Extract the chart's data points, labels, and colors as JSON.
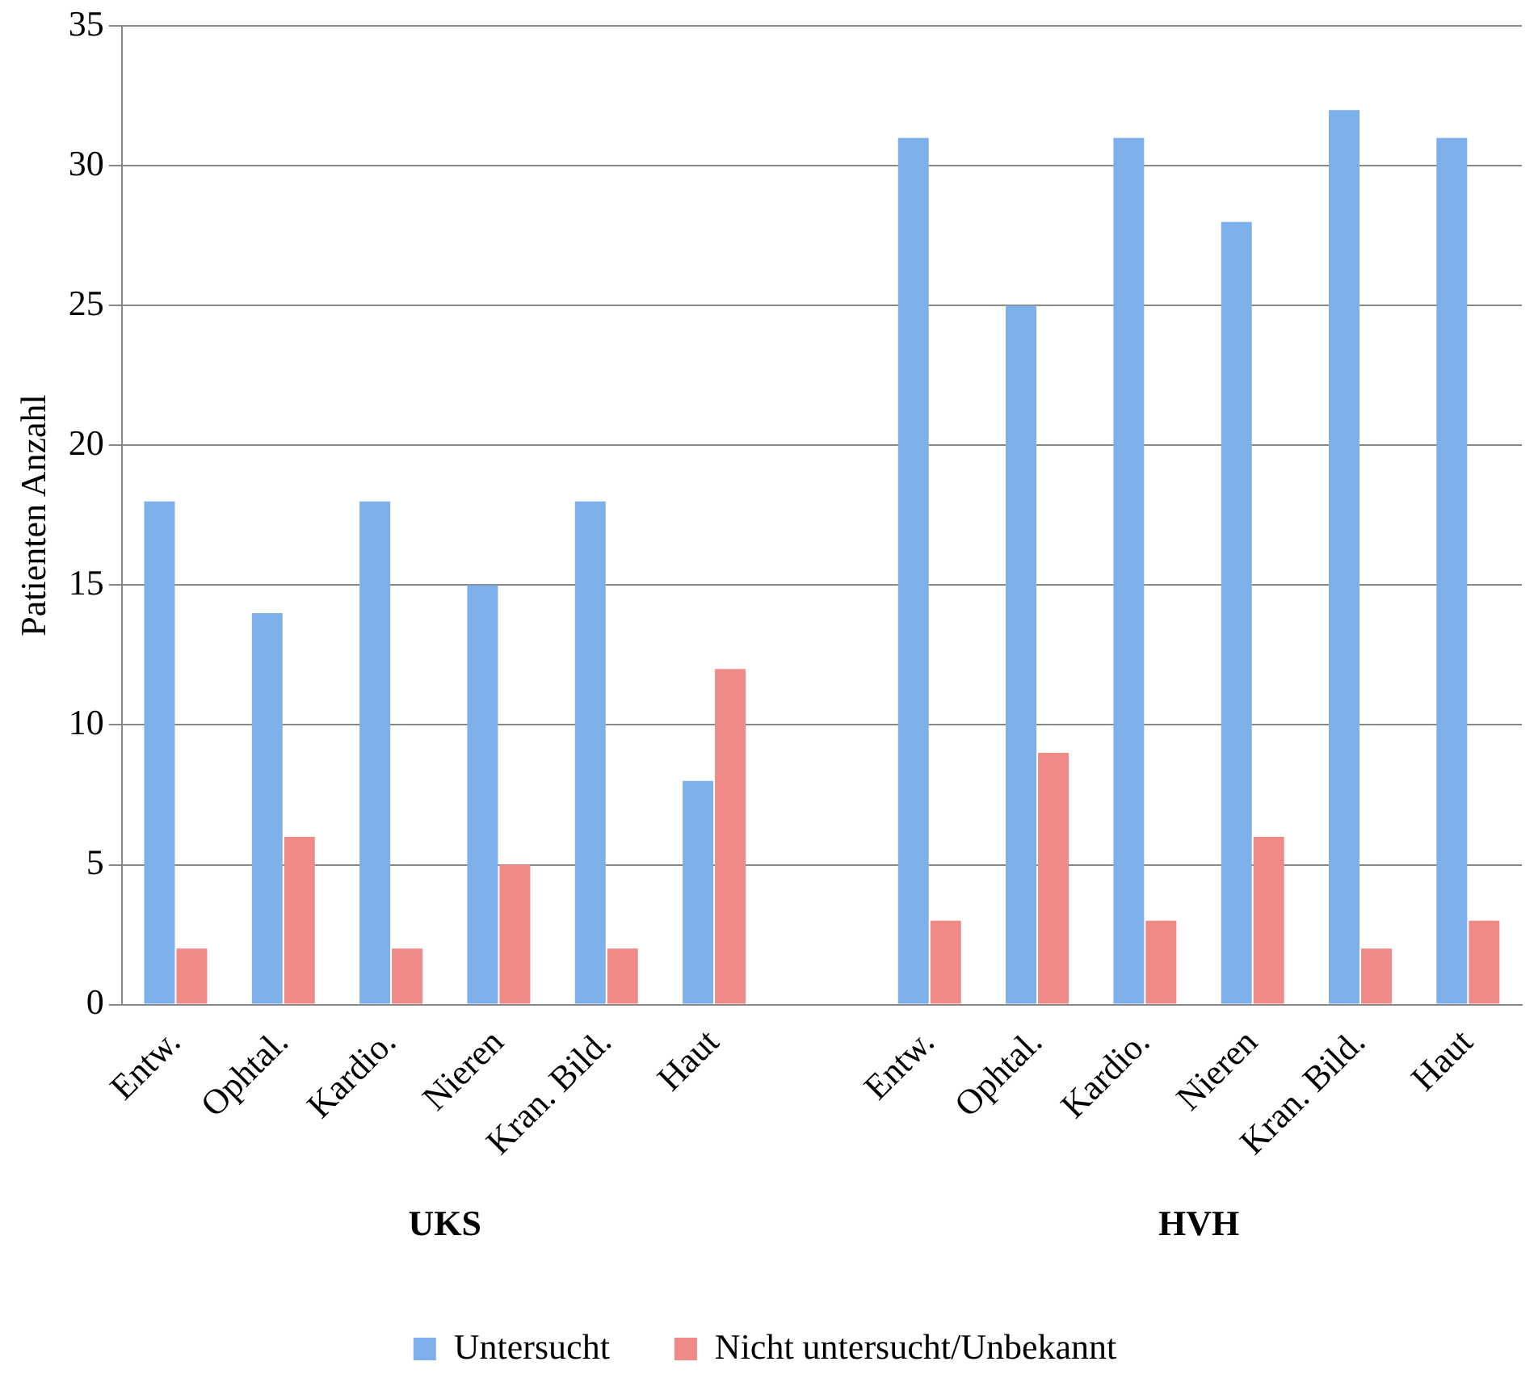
{
  "chart_data": {
    "type": "bar",
    "ylabel": "Patienten Anzahl",
    "categories": [
      "Entw.",
      "Ophtal.",
      "Kardio.",
      "Nieren",
      "Kran. Bild.",
      "Haut",
      null,
      "Entw.",
      "Ophtal.",
      "Kardio.",
      "Nieren",
      "Kran. Bild.",
      "Haut"
    ],
    "series": [
      {
        "name": "Untersucht",
        "color": "#7db0ea",
        "values": [
          18,
          14,
          18,
          15,
          18,
          8,
          null,
          31,
          25,
          31,
          28,
          32,
          31
        ]
      },
      {
        "name": "Nicht untersucht/Unbekannt",
        "color": "#f08a86",
        "values": [
          2,
          6,
          2,
          5,
          2,
          12,
          null,
          3,
          9,
          3,
          6,
          2,
          3
        ]
      }
    ],
    "ylim": [
      0,
      35
    ],
    "yticks": [
      0,
      5,
      10,
      15,
      20,
      25,
      30,
      35
    ],
    "grid": "y",
    "legend": "bottom",
    "annotations": [
      "UKS",
      "HVH"
    ]
  }
}
